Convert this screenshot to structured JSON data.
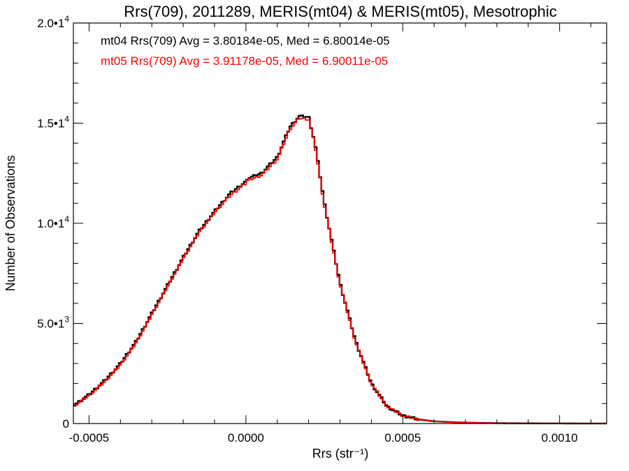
{
  "chart_data": {
    "type": "line",
    "step": true,
    "title": "Rrs(709), 2011289, MERIS(mt04) & MERIS(mt05), Mesotrophic",
    "xlabel": "Rrs (str⁻¹)",
    "ylabel": "Number of Observations",
    "xlim": [
      -0.00055,
      0.00115
    ],
    "ylim": [
      0,
      20000
    ],
    "grid": false,
    "x_ticks": [
      -0.0005,
      0.0,
      0.0005,
      0.001
    ],
    "x_tick_labels": [
      "-0.0005",
      "0.0000",
      "0.0005",
      "0.0010"
    ],
    "y_ticks": [
      0,
      5000,
      10000,
      15000,
      20000
    ],
    "y_tick_labels": [
      {
        "base": "0",
        "exp": ""
      },
      {
        "base": "5.0•1",
        "exp": "3"
      },
      {
        "base": "1.0•1",
        "exp": "4"
      },
      {
        "base": "1.5•1",
        "exp": "4"
      },
      {
        "base": "2.0•1",
        "exp": "4"
      }
    ],
    "annotations": [
      {
        "text": "mt04 Rrs(709) Avg = 3.80184e-05, Med = 6.80014e-05",
        "color": "#000000"
      },
      {
        "text": "mt05 Rrs(709) Avg = 3.91178e-05, Med = 6.90011e-05",
        "color": "#ff0000"
      }
    ],
    "series": [
      {
        "color": "#000000",
        "x": [
          -0.00055,
          -0.0005,
          -0.00045,
          -0.0004,
          -0.00035,
          -0.0003,
          -0.00025,
          -0.0002,
          -0.00015,
          -0.0001,
          -5e-05,
          0.0,
          5e-05,
          0.0001,
          0.00014,
          0.00017,
          0.0002,
          0.00022,
          0.00025,
          0.0003,
          0.00035,
          0.0004,
          0.00045,
          0.0005,
          0.00055,
          0.0006,
          0.0007,
          0.0008,
          0.0009,
          0.001,
          0.00115
        ],
        "y": [
          1000,
          1550,
          2250,
          3100,
          4200,
          5600,
          7000,
          8400,
          9700,
          10700,
          11600,
          12200,
          12500,
          13300,
          14800,
          15350,
          15300,
          14000,
          11000,
          7000,
          4100,
          2000,
          850,
          400,
          210,
          110,
          45,
          20,
          10,
          5,
          2
        ]
      },
      {
        "color": "#ff0000",
        "x": [
          -0.00055,
          -0.0005,
          -0.00045,
          -0.0004,
          -0.00035,
          -0.0003,
          -0.00025,
          -0.0002,
          -0.00015,
          -0.0001,
          -5e-05,
          0.0,
          5e-05,
          0.0001,
          0.00014,
          0.00017,
          0.0002,
          0.00022,
          0.00025,
          0.0003,
          0.00035,
          0.0004,
          0.00045,
          0.0005,
          0.00055,
          0.0006,
          0.0007,
          0.0008,
          0.0009,
          0.001,
          0.00115
        ],
        "y": [
          980,
          1520,
          2200,
          3050,
          4150,
          5550,
          6950,
          8350,
          9650,
          10650,
          11500,
          12100,
          12400,
          13200,
          14700,
          15250,
          15200,
          13900,
          10900,
          6950,
          4050,
          1980,
          840,
          395,
          205,
          108,
          44,
          19,
          9,
          5,
          2
        ]
      }
    ]
  }
}
